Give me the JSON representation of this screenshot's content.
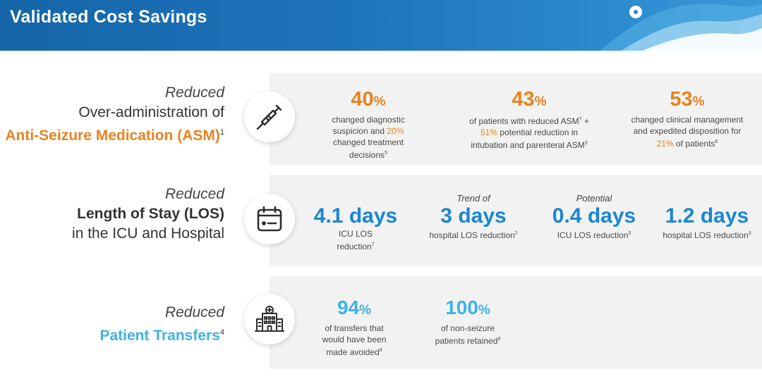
{
  "header": {
    "title": "Validated Cost Savings"
  },
  "rows": [
    {
      "label": {
        "reduced": "Reduced",
        "line1": "Over-administration of",
        "line2": "Anti-Seizure Medication (ASM)",
        "line2_sup": "1"
      },
      "icon": "syringe-icon",
      "stats": [
        {
          "value": "40",
          "unit": "%",
          "desc_lines": [
            "changed diagnostic",
            "suspicion and",
            "20%",
            "changed treatment",
            "decisions"
          ],
          "sup": "5"
        },
        {
          "value": "43",
          "unit": "%",
          "desc_lines": [
            "of patients with reduced ASM",
            "7",
            " +",
            "51%",
            "potential reduction in",
            "intubation and parenteral ASM",
            "3"
          ]
        },
        {
          "value": "53",
          "unit": "%",
          "desc_lines": [
            "changed clinical management",
            "and expedited disposition for",
            "21%",
            "of patients",
            "6"
          ]
        }
      ]
    },
    {
      "label": {
        "reduced": "Reduced",
        "line1": "Length of Stay (LOS)",
        "line2": "in the ICU and Hospital"
      },
      "icon": "calendar-icon",
      "stats": [
        {
          "pre": "",
          "value": "4.1 days",
          "desc1": "ICU LOS",
          "desc2": "reduction",
          "sup": "7"
        },
        {
          "pre": "Trend of",
          "value": "3 days",
          "desc1": "hospital LOS reduction",
          "sup": "2"
        },
        {
          "pre": "Potential",
          "value": "0.4 days",
          "desc1": "ICU LOS reduction",
          "sup": "3"
        },
        {
          "pre": "",
          "value": "1.2 days",
          "desc1": "hospital LOS reduction",
          "sup": "3"
        }
      ]
    },
    {
      "label": {
        "reduced": "Reduced",
        "line1": "Patient Transfers",
        "line1_sup": "4"
      },
      "icon": "hospital-icon",
      "stats": [
        {
          "value": "94",
          "unit": "%",
          "desc1": "of transfers that",
          "desc2": "would have been",
          "desc3": "made avoided",
          "sup": "8"
        },
        {
          "value": "100",
          "unit": "%",
          "desc1": "of non-seizure",
          "desc2": "patients retained",
          "sup": "9"
        }
      ]
    }
  ],
  "colors": {
    "orange": "#e8831f",
    "blue": "#1b87d0",
    "light_blue": "#3fb2e4",
    "header_blue": "#1e74bb",
    "row_bg": "#f2f2f2"
  }
}
